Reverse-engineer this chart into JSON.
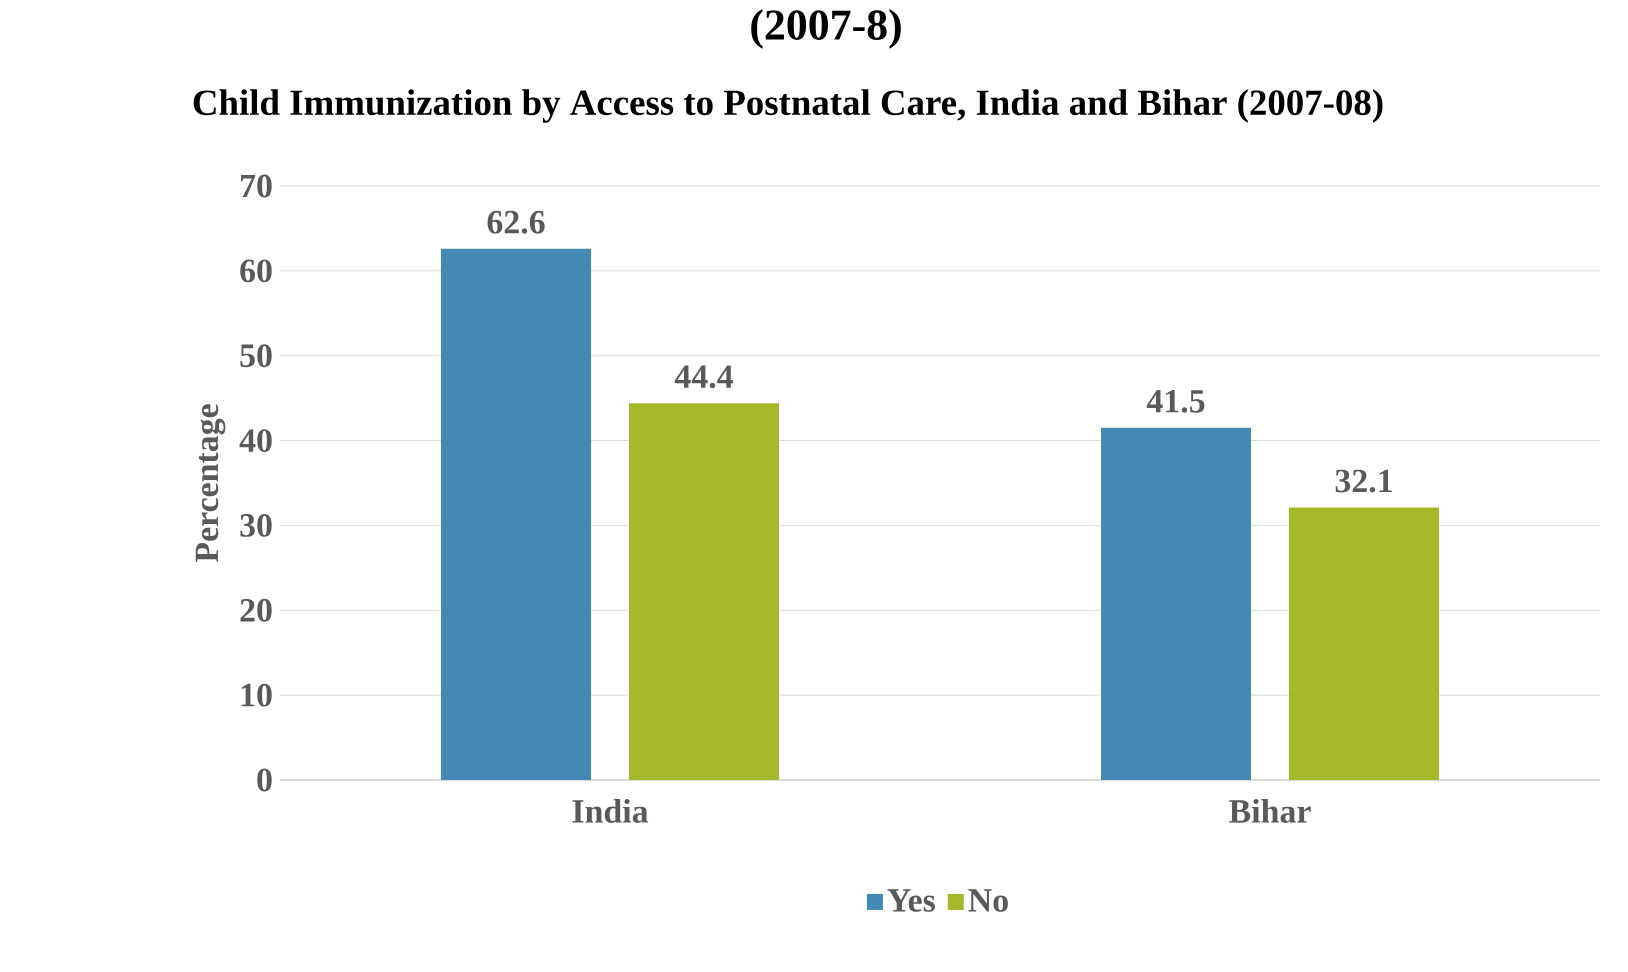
{
  "chart_data": {
    "type": "bar",
    "title": "Child Immunization by Access to Postnatal Care, India and Bihar (2007-08)",
    "annotations": [
      "(2007-8)"
    ],
    "ylabel": "Percentage",
    "categories": [
      "India",
      "Bihar"
    ],
    "series": [
      {
        "name": "Yes",
        "color": "#4389b4",
        "values": [
          62.6,
          41.5
        ]
      },
      {
        "name": "No",
        "color": "#a6b92b",
        "values": [
          44.4,
          32.1
        ]
      }
    ],
    "ylim": [
      0,
      70
    ],
    "yticks": [
      0,
      10,
      20,
      30,
      40,
      50,
      60,
      70
    ],
    "grid": "y",
    "legend": "bottom",
    "data_labels": true
  }
}
